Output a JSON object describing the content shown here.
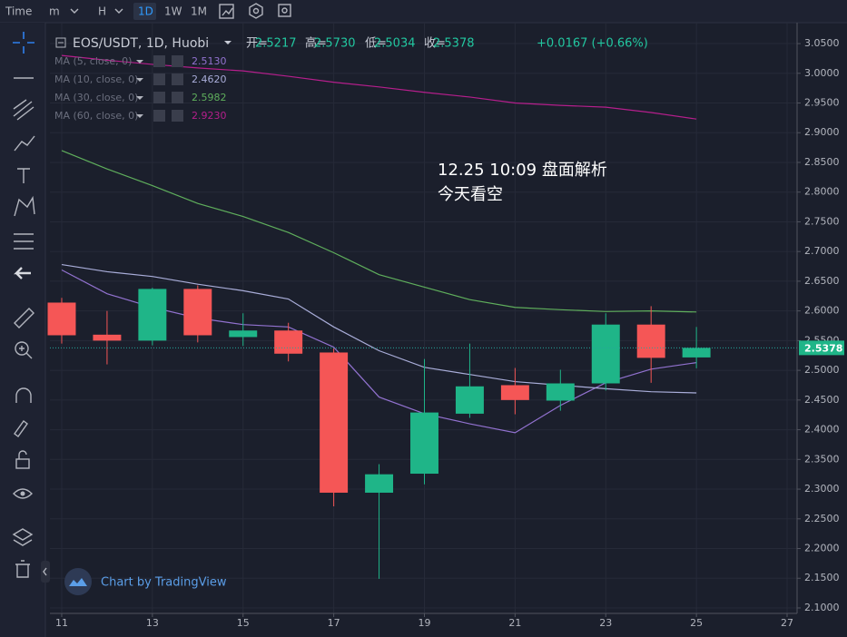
{
  "toolbar": {
    "items": [
      "Time",
      "m",
      "H",
      "1D",
      "1W",
      "1M"
    ]
  },
  "header": {
    "symbol": "EOS/USDT, 1D, Huobi",
    "ohlc": [
      {
        "label": "开=",
        "value": "2.5217"
      },
      {
        "label": "高=",
        "value": "2.5730"
      },
      {
        "label": "低=",
        "value": "2.5034"
      },
      {
        "label": "收=",
        "value": "2.5378"
      }
    ],
    "change": "+0.0167 (+0.66%)"
  },
  "watermark": "Chart by TradingView",
  "chart_data": {
    "type": "candlestick",
    "x": [
      11,
      12,
      13,
      14,
      15,
      16,
      17,
      18,
      19,
      20,
      21,
      22,
      23,
      24,
      25
    ],
    "open": [
      2.614,
      2.56,
      2.55,
      2.637,
      2.556,
      2.567,
      2.53,
      2.294,
      2.326,
      2.427,
      2.475,
      2.449,
      2.478,
      2.577,
      2.5217
    ],
    "high": [
      2.622,
      2.6,
      2.639,
      2.643,
      2.596,
      2.58,
      2.537,
      2.342,
      2.519,
      2.545,
      2.504,
      2.501,
      2.596,
      2.608,
      2.573
    ],
    "low": [
      2.545,
      2.51,
      2.542,
      2.547,
      2.541,
      2.515,
      2.271,
      2.149,
      2.308,
      2.42,
      2.426,
      2.432,
      2.466,
      2.479,
      2.5034
    ],
    "close": [
      2.559,
      2.55,
      2.637,
      2.559,
      2.567,
      2.528,
      2.294,
      2.325,
      2.429,
      2.473,
      2.45,
      2.478,
      2.577,
      2.521,
      2.5378
    ],
    "up_color": "#1fb588",
    "down_color": "#f55656",
    "series": [
      {
        "name": "MA (5, close, 0)",
        "color": "#9272d0",
        "value_label": "2.5130",
        "values": [
          2.669,
          2.629,
          2.606,
          2.588,
          2.577,
          2.573,
          2.539,
          2.455,
          2.427,
          2.41,
          2.395,
          2.441,
          2.479,
          2.502,
          2.513
        ]
      },
      {
        "name": "MA (10, close, 0)",
        "color": "#a9add9",
        "value_label": "2.4620",
        "values": [
          2.678,
          2.666,
          2.658,
          2.645,
          2.634,
          2.62,
          2.573,
          2.533,
          2.505,
          2.493,
          2.481,
          2.475,
          2.469,
          2.464,
          2.462
        ]
      },
      {
        "name": "MA (30, close, 0)",
        "color": "#5fae5c",
        "value_label": "2.5982",
        "values": [
          2.87,
          2.839,
          2.811,
          2.781,
          2.759,
          2.732,
          2.698,
          2.661,
          2.64,
          2.619,
          2.606,
          2.602,
          2.599,
          2.6,
          2.5982
        ]
      },
      {
        "name": "MA (60, close, 0)",
        "color": "#b51f8c",
        "value_label": "2.9230",
        "values": [
          3.03,
          3.022,
          3.015,
          3.009,
          3.004,
          2.995,
          2.985,
          2.977,
          2.968,
          2.96,
          2.95,
          2.946,
          2.943,
          2.934,
          2.923
        ]
      }
    ],
    "annotations": [
      "12.25 10:09 盘面解析",
      "今天看空"
    ],
    "xlim": [
      10.74,
      27.22
    ],
    "xticks": [
      11,
      13,
      15,
      17,
      19,
      21,
      23,
      25,
      27
    ],
    "ylim": [
      2.0908,
      3.0852
    ],
    "yticks": [
      {
        "value": 2.1,
        "label": "2.1000"
      },
      {
        "value": 2.15,
        "label": "2.1500"
      },
      {
        "value": 2.2,
        "label": "2.2000"
      },
      {
        "value": 2.25,
        "label": "2.2500"
      },
      {
        "value": 2.3,
        "label": "2.3000"
      },
      {
        "value": 2.35,
        "label": "2.3500"
      },
      {
        "value": 2.4,
        "label": "2.4000"
      },
      {
        "value": 2.45,
        "label": "2.4500"
      },
      {
        "value": 2.5,
        "label": "2.5000"
      },
      {
        "value": 2.55,
        "label": "2.5500"
      },
      {
        "value": 2.6,
        "label": "2.6000"
      },
      {
        "value": 2.65,
        "label": "2.6500"
      },
      {
        "value": 2.7,
        "label": "2.7000"
      },
      {
        "value": 2.75,
        "label": "2.7500"
      },
      {
        "value": 2.8,
        "label": "2.8000"
      },
      {
        "value": 2.85,
        "label": "2.8500"
      },
      {
        "value": 2.9,
        "label": "2.9000"
      },
      {
        "value": 2.95,
        "label": "2.9500"
      },
      {
        "value": 3.0,
        "label": "3.0000"
      },
      {
        "value": 3.05,
        "label": "3.0500"
      }
    ],
    "grid": true
  }
}
